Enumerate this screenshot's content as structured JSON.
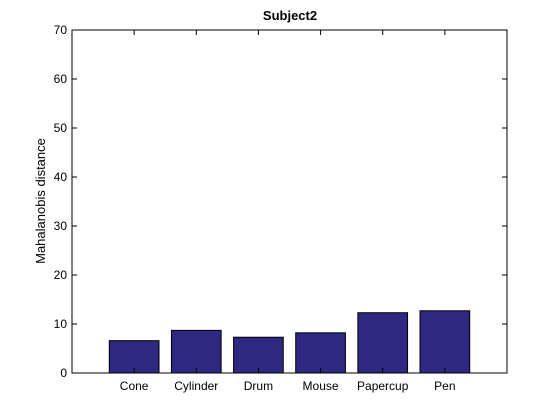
{
  "chart_data": {
    "type": "bar",
    "title": "Subject2",
    "xlabel": "",
    "ylabel": "Mahalanobis distance",
    "categories": [
      "Cone",
      "Cylinder",
      "Drum",
      "Mouse",
      "Papercup",
      "Pen"
    ],
    "values": [
      6.6,
      8.7,
      7.3,
      8.2,
      12.3,
      12.7
    ],
    "ylim": [
      0,
      70
    ],
    "yticks": [
      0,
      10,
      20,
      30,
      40,
      50,
      60,
      70
    ],
    "yticklabels": [
      "0",
      "10",
      "20",
      "30",
      "40",
      "50",
      "60",
      "70"
    ],
    "grid": false,
    "legend": "none",
    "colors": {
      "bar_fill": "#2e2883",
      "bar_edge": "#000000",
      "axis": "#000000",
      "background": "#ffffff"
    }
  }
}
